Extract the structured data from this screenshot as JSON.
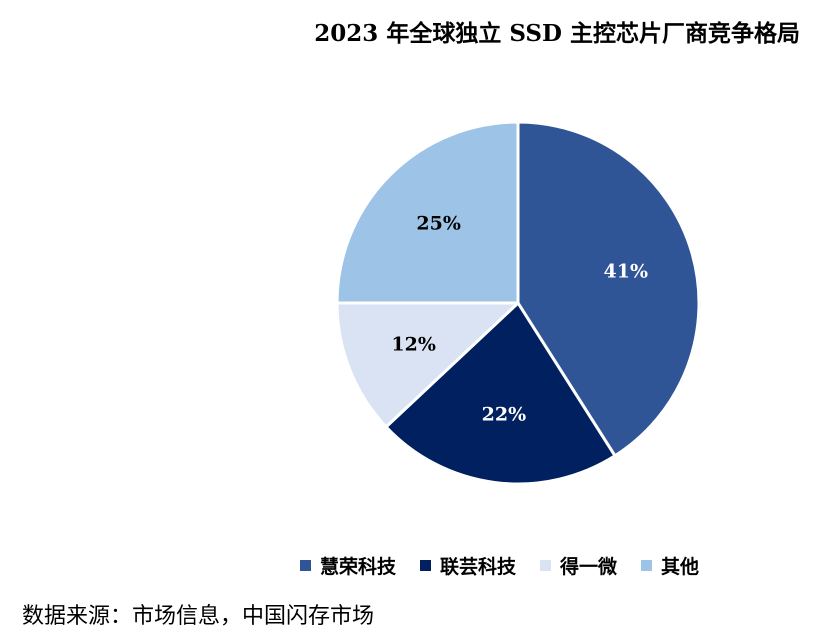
{
  "chart_data": {
    "type": "pie",
    "title": "2023 年全球独立 SSD 主控芯片厂商竞争格局",
    "categories": [
      "慧荣科技",
      "联芸科技",
      "得一微",
      "其他"
    ],
    "values": [
      41,
      22,
      12,
      25
    ],
    "data_labels": [
      "41%",
      "22%",
      "12%",
      "25%"
    ],
    "colors": [
      "#2F5597",
      "#002060",
      "#DAE3F3",
      "#9DC3E6"
    ],
    "label_colors": [
      "#FFFFFF",
      "#FFFFFF",
      "#000000",
      "#000000"
    ],
    "start_angle_deg": 0,
    "direction": "clockwise",
    "legend_placement": "bottom"
  },
  "source_note": "数据来源：市场信息，中国闪存市场"
}
